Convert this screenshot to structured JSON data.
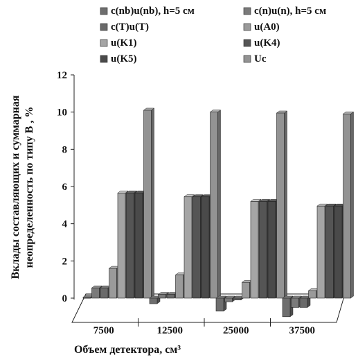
{
  "chart_data": {
    "type": "bar",
    "title": "",
    "xlabel": "Объем детектора, см³",
    "ylabel_lines": [
      "Вклады составляющих и суммарная",
      "неопределенность  по типу В , %"
    ],
    "categories": [
      "7500",
      "12500",
      "25000",
      "37500"
    ],
    "ylim": [
      0,
      12
    ],
    "yticks": [
      "0",
      "2",
      "4",
      "6",
      "8",
      "10",
      "12"
    ],
    "grid": false,
    "legend_position": "top",
    "series": [
      {
        "name": "c(nb)u(nb), h=5 см",
        "color": "#6e6e6e",
        "values": [
          0.05,
          -0.3,
          -0.7,
          -1.0
        ]
      },
      {
        "name": "c(n)u(n), h=5 см",
        "color": "#7a7a7a",
        "values": [
          0.55,
          0.2,
          -0.2,
          -0.5
        ]
      },
      {
        "name": "c(T)u(T)",
        "color": "#6a6a6a",
        "values": [
          0.55,
          0.2,
          -0.1,
          -0.5
        ]
      },
      {
        "name": "u(A0)",
        "color": "#9a9a9a",
        "values": [
          1.6,
          1.25,
          0.85,
          0.4
        ]
      },
      {
        "name": "u(K1)",
        "color": "#a5a5a5",
        "values": [
          5.65,
          5.45,
          5.2,
          4.95
        ]
      },
      {
        "name": "u(K4)",
        "color": "#555555",
        "values": [
          5.65,
          5.45,
          5.2,
          4.95
        ]
      },
      {
        "name": "u(K5)",
        "color": "#4a4a4a",
        "values": [
          5.65,
          5.45,
          5.2,
          4.95
        ]
      },
      {
        "name": "Uc",
        "color": "#939393",
        "values": [
          10.1,
          10.0,
          9.95,
          9.9
        ]
      }
    ]
  }
}
